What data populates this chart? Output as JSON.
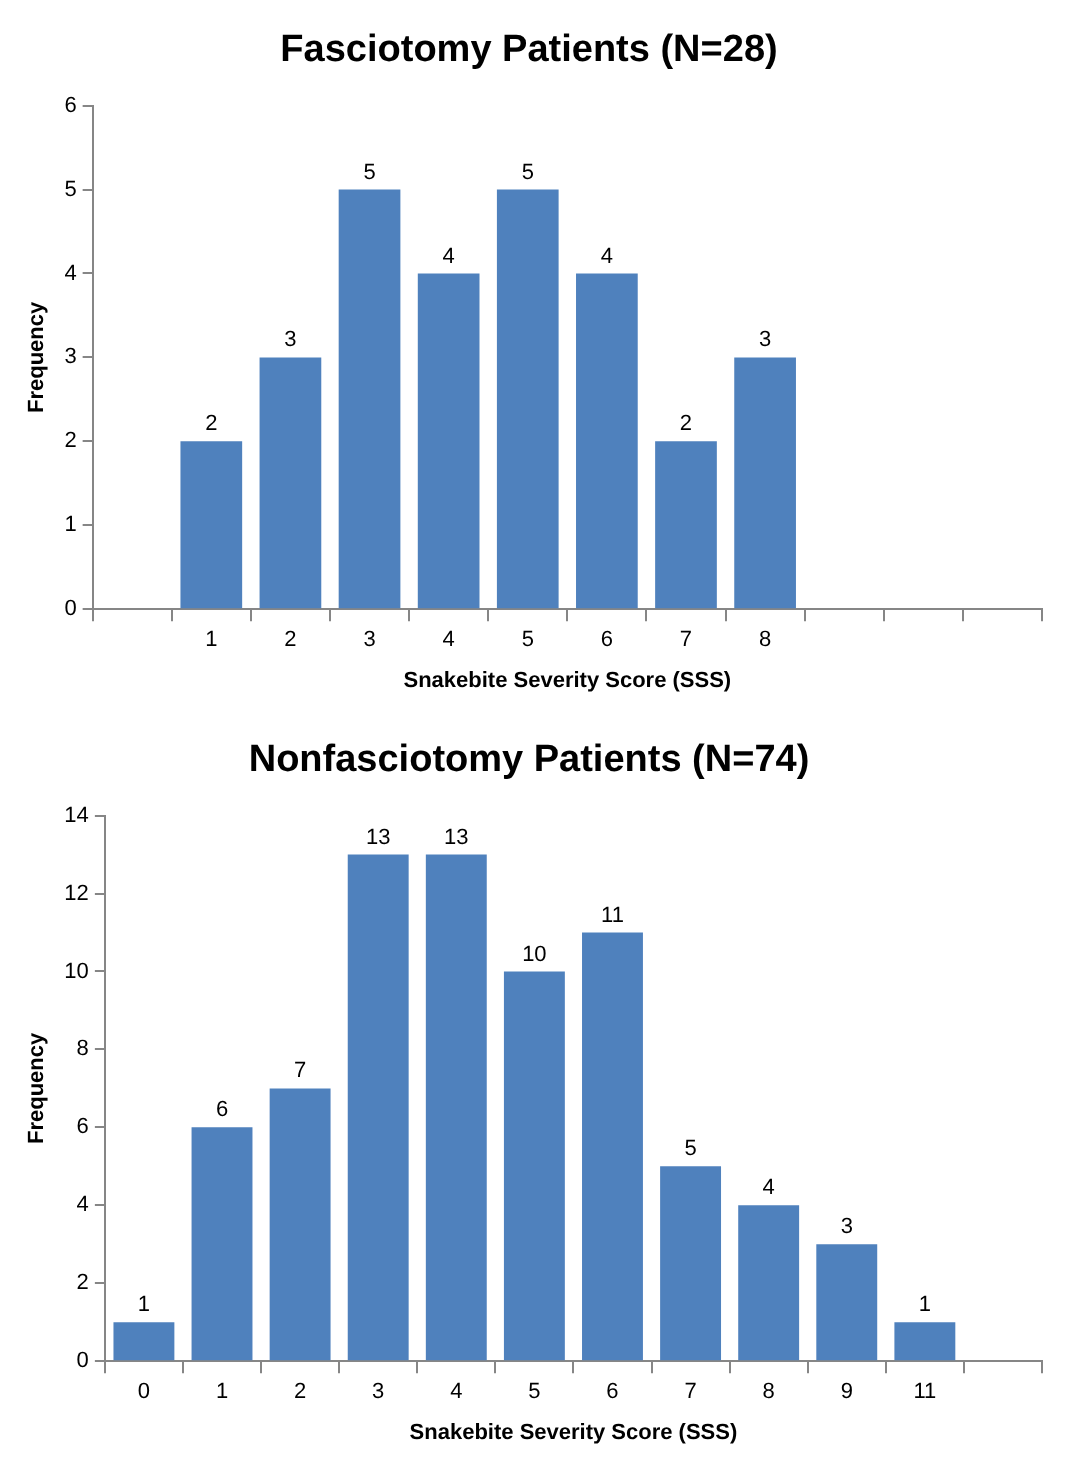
{
  "chart_data": [
    {
      "type": "bar",
      "title": "Fasciotomy Patients (N=28)",
      "xlabel": "Snakebite Severity Score (SSS)",
      "ylabel": "Frequency",
      "categories": [
        null,
        "1",
        "2",
        "3",
        "4",
        "5",
        "6",
        "7",
        "8",
        null,
        null,
        null
      ],
      "values": [
        null,
        2,
        3,
        5,
        4,
        5,
        4,
        2,
        3,
        null,
        null,
        null
      ],
      "color": "#4f81bd",
      "ylim": [
        0,
        6
      ],
      "yticks": [
        0,
        1,
        2,
        3,
        4,
        5,
        6
      ],
      "data_labels": true
    },
    {
      "type": "bar",
      "title": "Nonfasciotomy Patients (N=74)",
      "xlabel": "Snakebite Severity Score (SSS)",
      "ylabel": "Frequency",
      "categories": [
        "0",
        "1",
        "2",
        "3",
        "4",
        "5",
        "6",
        "7",
        "8",
        "9",
        "11",
        null
      ],
      "values": [
        1,
        6,
        7,
        13,
        13,
        10,
        11,
        5,
        4,
        3,
        1,
        null
      ],
      "color": "#4f81bd",
      "ylim": [
        0,
        14
      ],
      "yticks": [
        0,
        2,
        4,
        6,
        8,
        10,
        12,
        14
      ],
      "data_labels": true
    }
  ]
}
